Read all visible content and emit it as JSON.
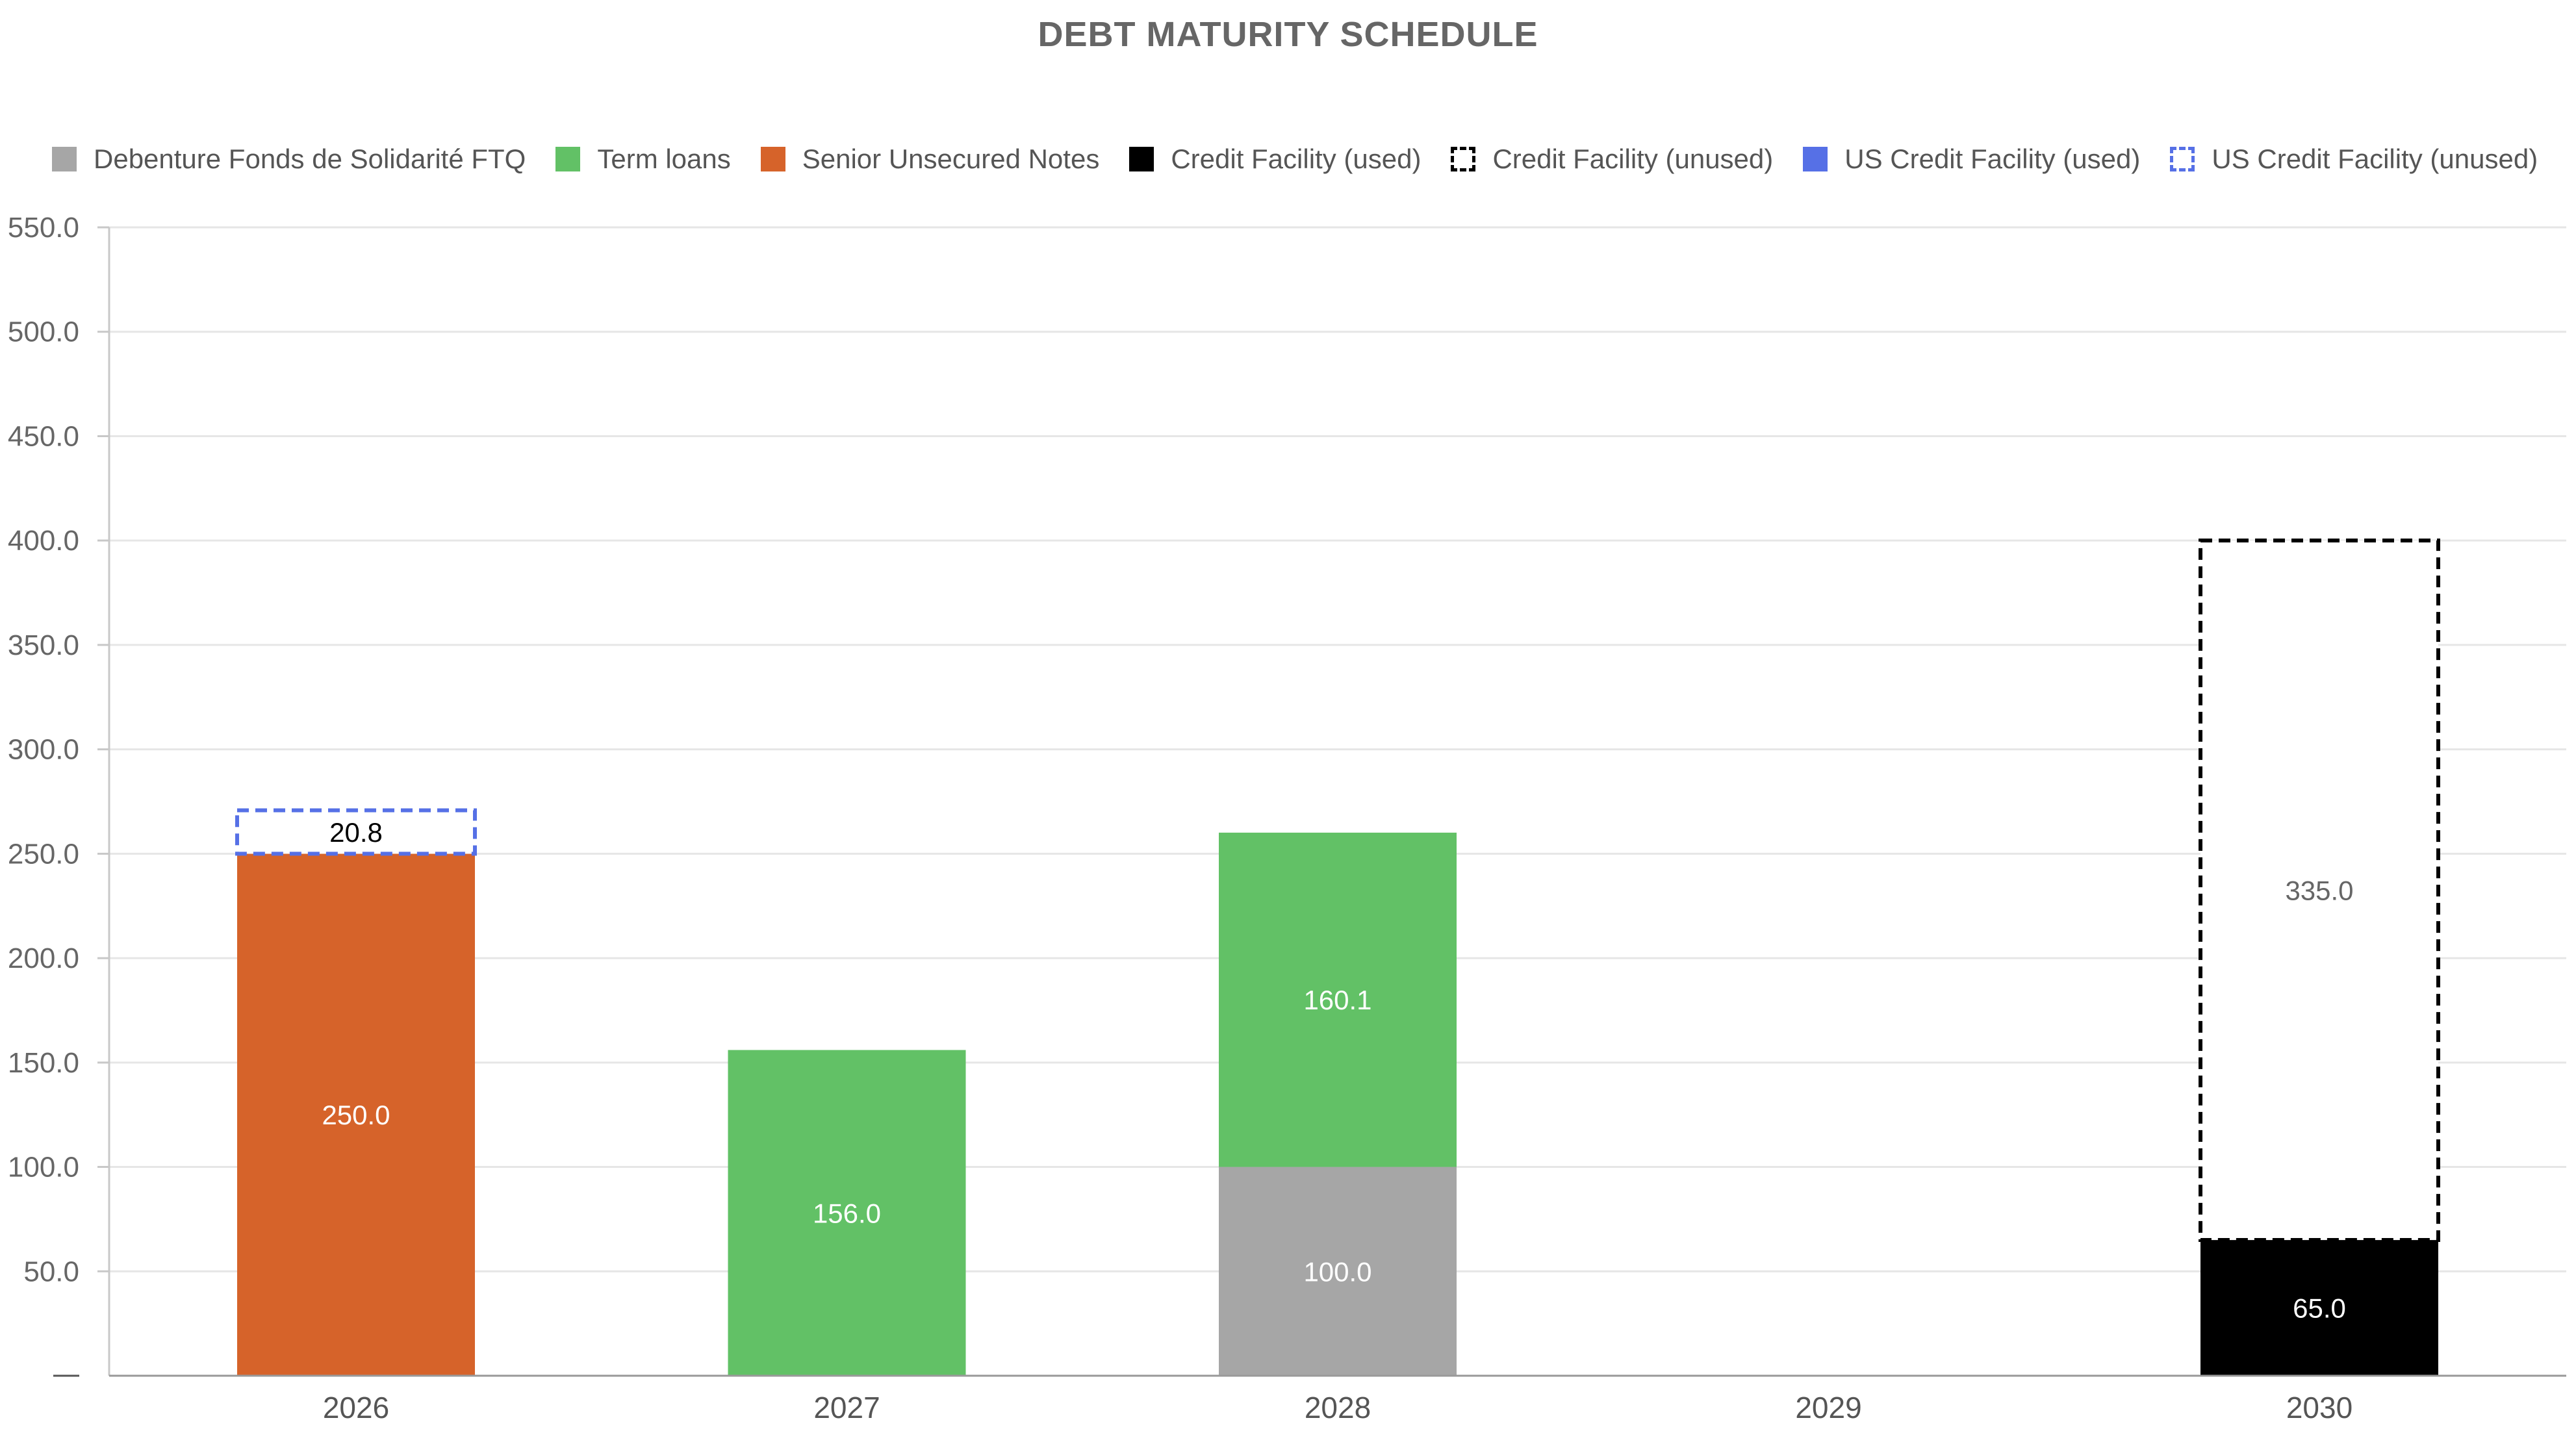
{
  "chart_data": {
    "type": "bar",
    "stacked": true,
    "title": "DEBT MATURITY SCHEDULE",
    "xlabel": "",
    "ylabel": "",
    "categories": [
      "2026",
      "2027",
      "2028",
      "2029",
      "2030"
    ],
    "ylim": [
      0,
      550
    ],
    "yticks": [
      "550.0",
      "500.0",
      "450.0",
      "400.0",
      "350.0",
      "300.0",
      "250.0",
      "200.0",
      "150.0",
      "100.0",
      "50.0"
    ],
    "grid": true,
    "legend_position": "top",
    "series": [
      {
        "name": "Debenture Fonds de Solidarité FTQ",
        "color": "#a6a6a6",
        "style": "solid",
        "label_color": "#ffffff",
        "values": [
          null,
          null,
          100.0,
          null,
          null
        ],
        "labels": [
          null,
          null,
          "100.0",
          null,
          null
        ]
      },
      {
        "name": "Term loans",
        "color": "#62c166",
        "style": "solid",
        "label_color": "#ffffff",
        "values": [
          null,
          156.0,
          160.1,
          null,
          null
        ],
        "labels": [
          null,
          "156.0",
          "160.1",
          null,
          null
        ]
      },
      {
        "name": "Senior Unsecured Notes",
        "color": "#d6632a",
        "style": "solid",
        "label_color": "#ffffff",
        "values": [
          250.0,
          null,
          null,
          null,
          null
        ],
        "labels": [
          "250.0",
          null,
          null,
          null,
          null
        ]
      },
      {
        "name": "Credit Facility (used)",
        "color": "#000000",
        "style": "solid",
        "label_color": "#ffffff",
        "values": [
          null,
          null,
          null,
          null,
          65.0
        ],
        "labels": [
          null,
          null,
          null,
          null,
          "65.0"
        ]
      },
      {
        "name": "Credit Facility (unused)",
        "color": "#000000",
        "style": "dashed",
        "label_color": "#666666",
        "values": [
          null,
          null,
          null,
          null,
          335.0
        ],
        "labels": [
          null,
          null,
          null,
          null,
          "335.0"
        ]
      },
      {
        "name": "US Credit Facility (used)",
        "color": "#5670e6",
        "style": "solid",
        "label_color": "#ffffff",
        "values": [
          null,
          null,
          null,
          null,
          null
        ],
        "labels": [
          null,
          null,
          null,
          null,
          null
        ]
      },
      {
        "name": "US Credit Facility (unused)",
        "color": "#5670e6",
        "style": "dashed",
        "label_color": "#000000",
        "values": [
          20.8,
          null,
          null,
          null,
          null
        ],
        "labels": [
          "20.8",
          null,
          null,
          null,
          null
        ]
      }
    ]
  }
}
